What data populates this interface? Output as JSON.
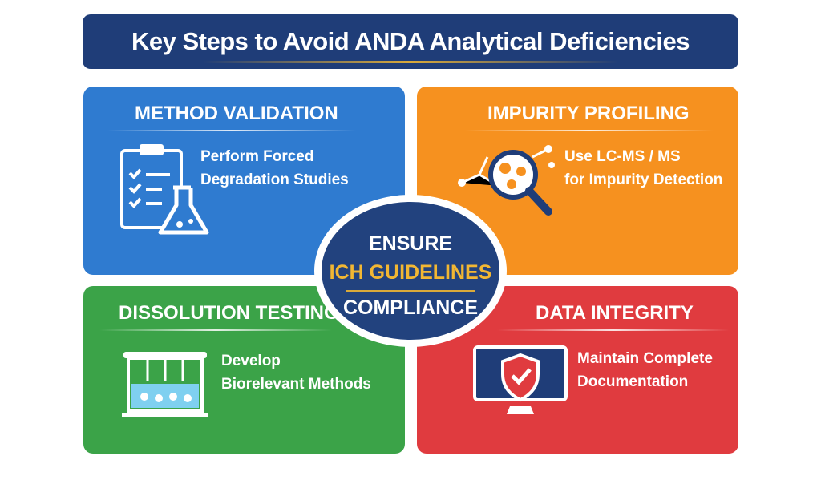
{
  "title": "Key Steps to Avoid ANDA Analytical Deficiencies",
  "colors": {
    "title_bg": "#1f3d78",
    "blue": "#2f7bd0",
    "orange": "#f6911f",
    "green": "#3ba348",
    "red": "#e03b3f",
    "gold": "#f2b733"
  },
  "quadrants": [
    {
      "heading": "METHOD VALIDATION",
      "lines": [
        "Perform Forced",
        "Degradation Studies"
      ],
      "icon": "clipboard-flask-icon"
    },
    {
      "heading": "IMPURITY PROFILING",
      "lines": [
        "Use LC-MS / MS",
        "for Impurity Detection"
      ],
      "icon": "magnifier-molecule-icon"
    },
    {
      "heading": "DISSOLUTION TESTING",
      "lines": [
        "Develop",
        "Biorelevant Methods"
      ],
      "icon": "dissolution-bath-icon"
    },
    {
      "heading": "DATA INTEGRITY",
      "lines": [
        "Maintain Complete",
        "Documentation"
      ],
      "icon": "monitor-shield-icon"
    }
  ],
  "center": {
    "line1": "ENSURE",
    "line2": "ICH GUIDELINES",
    "line3": "COMPLIANCE"
  }
}
